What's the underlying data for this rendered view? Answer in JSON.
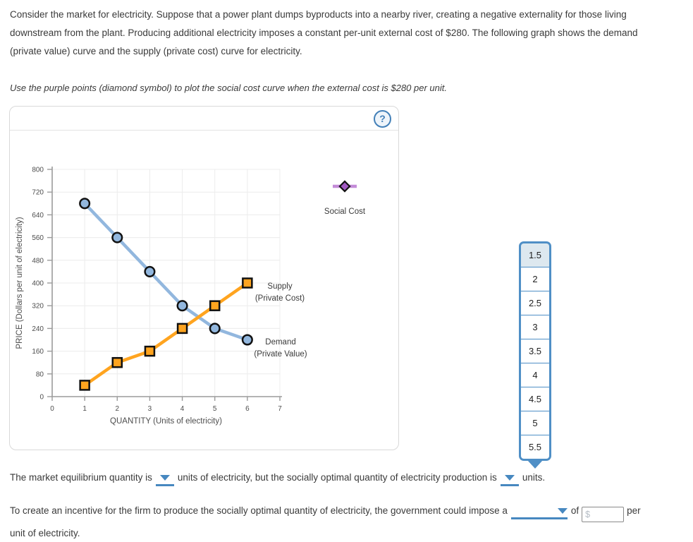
{
  "intro": {
    "lines": [
      "Consider the market for electricity. Suppose that a power plant dumps byproducts into a nearby river, creating a negative externality for those living",
      "downstream from the plant. Producing additional electricity imposes a constant per-unit external cost of $280. The following graph shows the demand",
      "(private value) curve and the supply (private cost) curve for electricity."
    ],
    "instruction": "Use the purple points (diamond symbol) to plot the social cost curve when the external cost is $280 per unit."
  },
  "graph_panel": {
    "help_glyph": "?"
  },
  "chart_data": {
    "type": "line",
    "xlabel": "QUANTITY (Units of electricity)",
    "ylabel": "PRICE (Dollars per unit of electricity)",
    "xlim": [
      0,
      7
    ],
    "ylim": [
      0,
      800
    ],
    "xticks": [
      0,
      1,
      2,
      3,
      4,
      5,
      6,
      7
    ],
    "yticks": [
      0,
      80,
      160,
      240,
      320,
      400,
      480,
      560,
      640,
      720,
      800
    ],
    "grid": true,
    "legend_position": "right-of-plot",
    "x": [
      1,
      2,
      3,
      4,
      5,
      6
    ],
    "series": [
      {
        "name": "Demand (Private Value)",
        "label": [
          "Demand",
          "(Private Value)"
        ],
        "marker": "circle",
        "color": "#92b7de",
        "values": [
          680,
          560,
          440,
          320,
          240,
          200
        ]
      },
      {
        "name": "Supply (Private Cost)",
        "label": [
          "Supply",
          "(Private Cost)"
        ],
        "marker": "square",
        "color": "#ffa41f",
        "values": [
          40,
          120,
          160,
          240,
          320,
          400
        ]
      }
    ],
    "plottable_legend": {
      "label": "Social Cost",
      "marker": "diamond",
      "marker_color": "#a159c1",
      "line_color": "#c48bd8"
    },
    "external_cost_per_unit": 280
  },
  "quantity_popup": {
    "options": [
      "1.5",
      "2",
      "2.5",
      "3",
      "3.5",
      "4",
      "4.5",
      "5",
      "5.5"
    ],
    "selected_index": 0
  },
  "equilibrium_sentence": {
    "part1": "The market equilibrium quantity is",
    "part2": "units of electricity, but the socially optimal quantity of electricity production is",
    "part3": "units."
  },
  "incentive_sentence": {
    "part1": "To create an incentive for the firm to produce the socially optimal quantity of electricity, the government could impose a",
    "part2": "of",
    "amount_placeholder": "$",
    "part3": "per",
    "part4": "unit of electricity."
  },
  "colors": {
    "accent_dropdown_blue": "#4788c0",
    "popup_border_blue": "#4f8fc6",
    "popup_selected_bg": "#dde8ef",
    "demand_blue": "#92b7de",
    "supply_orange": "#ffa41f",
    "social_cost_purple": "#a159c1",
    "panel_border": "#d9d9d9",
    "help_icon_blue": "#4380b8"
  }
}
